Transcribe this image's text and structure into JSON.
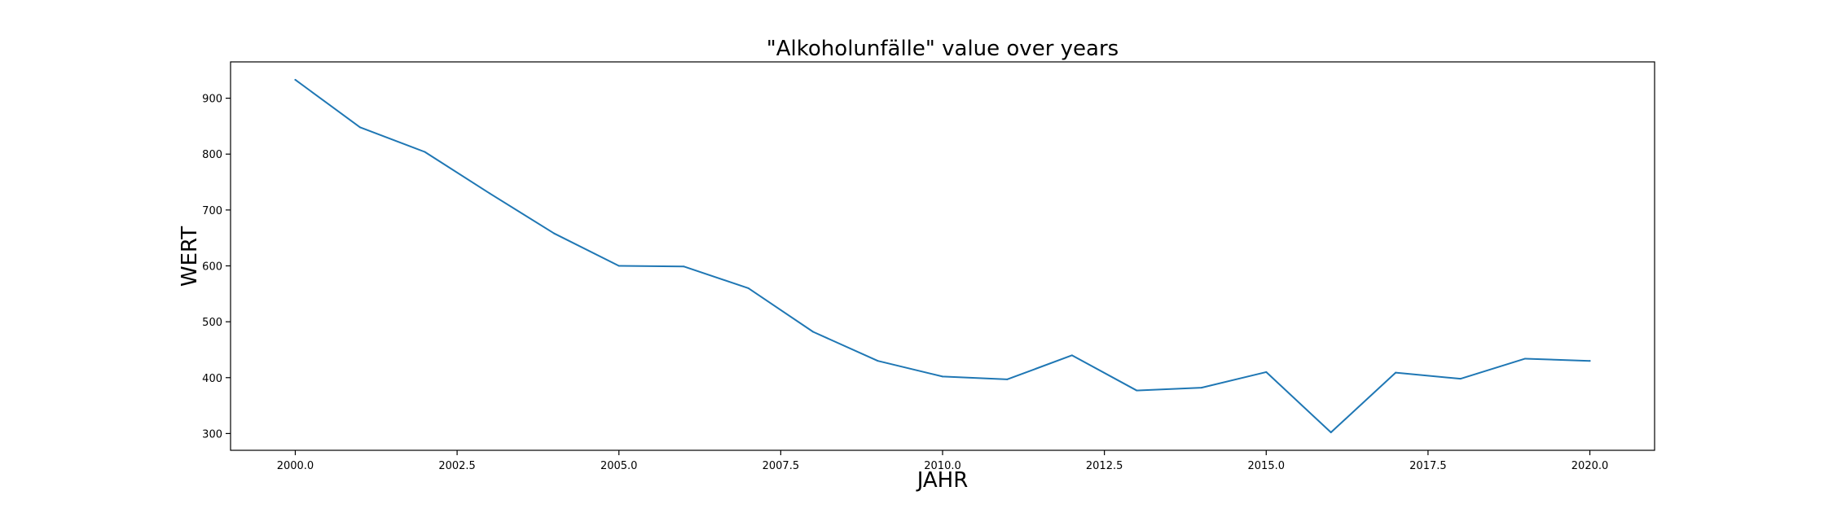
{
  "chart_data": {
    "type": "line",
    "title": "\"Alkoholunfälle\" value over years",
    "xlabel": "JAHR",
    "ylabel": "WERT",
    "xlim": [
      1999,
      2021
    ],
    "ylim": [
      270,
      965
    ],
    "xticks": [
      2000.0,
      2002.5,
      2005.0,
      2007.5,
      2010.0,
      2012.5,
      2015.0,
      2017.5,
      2020.0
    ],
    "xtick_labels": [
      "2000.0",
      "2002.5",
      "2005.0",
      "2007.5",
      "2010.0",
      "2012.5",
      "2015.0",
      "2017.5",
      "2020.0"
    ],
    "yticks": [
      300,
      400,
      500,
      600,
      700,
      800,
      900
    ],
    "ytick_labels": [
      "300",
      "400",
      "500",
      "600",
      "700",
      "800",
      "900"
    ],
    "grid": false,
    "series": [
      {
        "color": "#1f77b4",
        "x": [
          2000,
          2001,
          2002,
          2003,
          2004,
          2005,
          2006,
          2007,
          2008,
          2009,
          2010,
          2011,
          2012,
          2013,
          2014,
          2015,
          2016,
          2017,
          2018,
          2019,
          2020
        ],
        "values": [
          933,
          848,
          804,
          730,
          658,
          600,
          599,
          560,
          482,
          430,
          402,
          397,
          440,
          377,
          382,
          410,
          302,
          409,
          398,
          434,
          430
        ]
      }
    ]
  }
}
